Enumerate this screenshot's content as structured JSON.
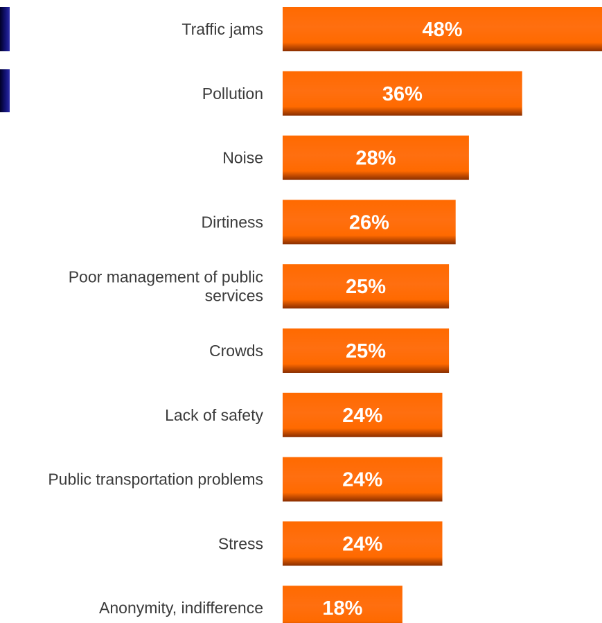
{
  "colors": {
    "bar_top": "#ff6a00",
    "bar_mid": "#ff6f10",
    "bar_dark": "#8a2e00",
    "label_text": "#3a3a3a",
    "value_text": "#ffffff",
    "decor_navy": "#14147a"
  },
  "chart_data": {
    "type": "bar",
    "orientation": "horizontal",
    "categories": [
      [
        "Traffic jams"
      ],
      [
        "Pollution"
      ],
      [
        "Noise"
      ],
      [
        "Dirtiness"
      ],
      [
        "Poor management of public",
        "services"
      ],
      [
        "Crowds"
      ],
      [
        "Lack of safety"
      ],
      [
        "Public transportation problems"
      ],
      [
        "Stress"
      ],
      [
        "Anonymity, indifference"
      ]
    ],
    "values": [
      48,
      36,
      28,
      26,
      25,
      25,
      24,
      24,
      24,
      18
    ],
    "value_labels": [
      "48%",
      "36%",
      "28%",
      "26%",
      "25%",
      "25%",
      "24%",
      "24%",
      "24%",
      "18%"
    ],
    "unit": "%",
    "xlim": [
      0,
      48
    ],
    "grid": false,
    "legend": "none"
  }
}
